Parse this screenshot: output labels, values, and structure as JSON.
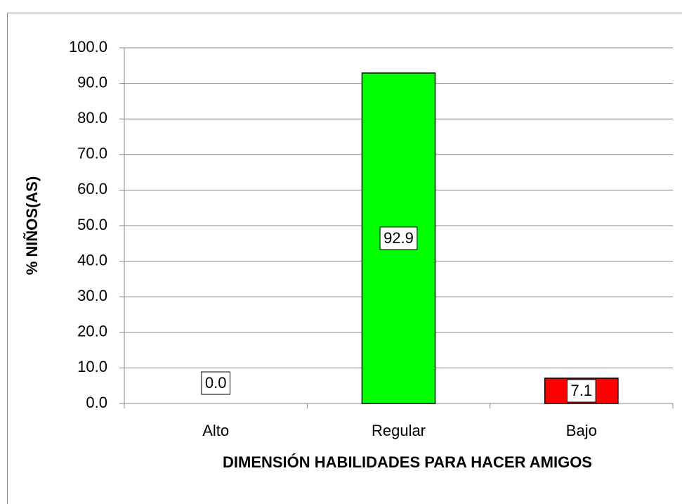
{
  "chart_data": {
    "type": "bar",
    "categories": [
      "Alto",
      "Regular",
      "Bajo"
    ],
    "values": [
      0,
      92.9,
      7.1
    ],
    "value_labels": [
      "0.0",
      "92.9",
      "7.1"
    ],
    "colors": [
      null,
      "#00ff00",
      "#ff0000"
    ],
    "x_label": "DIMENSIÓN HABILIDADES PARA HACER AMIGOS",
    "y_label": "% NIÑOS(AS)",
    "ylim": [
      0,
      100
    ],
    "yticks": [
      {
        "value": 0,
        "label": "0.0"
      },
      {
        "value": 10,
        "label": "10.0"
      },
      {
        "value": 20,
        "label": "20.0"
      },
      {
        "value": 30,
        "label": "30.0"
      },
      {
        "value": 40,
        "label": "40.0"
      },
      {
        "value": 50,
        "label": "50.0"
      },
      {
        "value": 60,
        "label": "60.0"
      },
      {
        "value": 70,
        "label": "70.0"
      },
      {
        "value": 80,
        "label": "80.0"
      },
      {
        "value": 90,
        "label": "90.0"
      },
      {
        "value": 100,
        "label": "100.0"
      }
    ],
    "grid": true
  }
}
